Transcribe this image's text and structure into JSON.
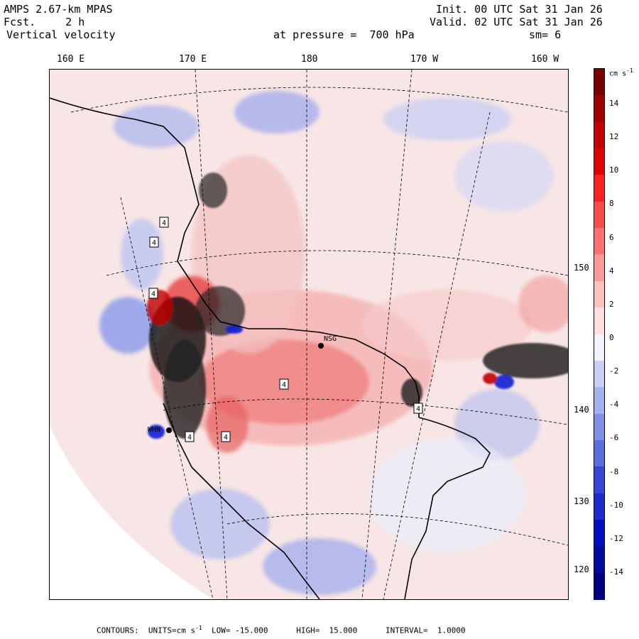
{
  "header": {
    "model": "AMPS 2.67-km MPAS",
    "fcst_label": "Fcst.",
    "fcst_value": "2 h",
    "field": "Vertical velocity",
    "init": "Init. 00 UTC Sat 31 Jan 26",
    "valid": "Valid. 02 UTC Sat 31 Jan 26",
    "level": "at pressure =  700 hPa",
    "smoothing": "sm= 6"
  },
  "map": {
    "lon_labels": [
      "160 E",
      "170 E",
      "180",
      "170 W",
      "160 W"
    ],
    "lat_labels": [
      "150 W",
      "140 W",
      "130 W",
      "120 W"
    ],
    "stations": [
      "NSG",
      "WHN"
    ],
    "contour_box_values": [
      "4",
      "4",
      "4",
      "4",
      "4",
      "4",
      "4"
    ]
  },
  "colorbar": {
    "units_text": "cm s",
    "units_exp": "-1",
    "labels": [
      "14",
      "12",
      "10",
      "8",
      "6",
      "4",
      "2",
      "0",
      "-2",
      "-4",
      "-6",
      "-8",
      "-10",
      "-12",
      "-14"
    ],
    "colors": [
      "#7a0000",
      "#a00000",
      "#c40000",
      "#e00000",
      "#ff2020",
      "#ff4a4a",
      "#ff7070",
      "#ff9a9a",
      "#ffc0c0",
      "#ffe0e0",
      "#f3f3ff",
      "#c8cff5",
      "#a4b0f0",
      "#8090e8",
      "#5a6ee0",
      "#3448d8",
      "#1a2ccc",
      "#0010c0",
      "#000aa0",
      "#000080"
    ]
  },
  "footer": {
    "text": "CONTOURS:  UNITS=cm s",
    "units_exp": "-1",
    "low": "LOW= -15.000",
    "high": "HIGH=  15.000",
    "interval": "INTERVAL=  1.0000"
  }
}
